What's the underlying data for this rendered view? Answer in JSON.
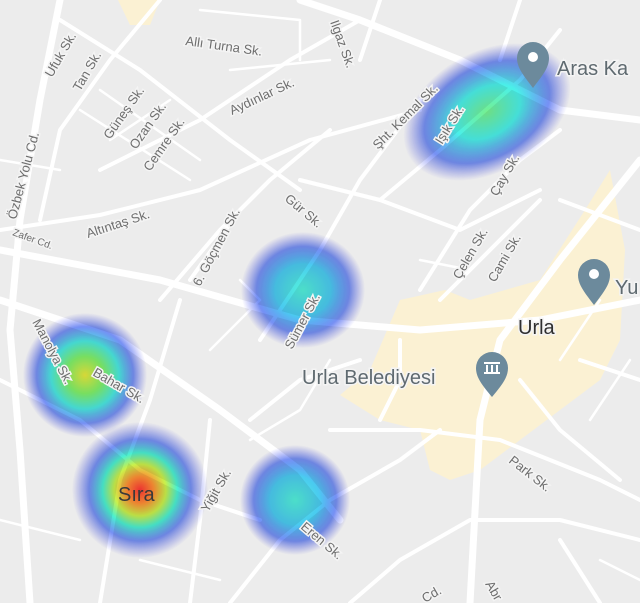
{
  "map": {
    "colors": {
      "land": "#ececec",
      "road": "#ffffff",
      "commercial_area": "#fbf1d3",
      "poi_pin": "#6c8a9c"
    },
    "heatmap_points": [
      {
        "name": "Işık Sk. cluster",
        "intensity": 0.55
      },
      {
        "name": "Sümer Sk. cluster",
        "intensity": 0.35
      },
      {
        "name": "Bahar Sk. cluster",
        "intensity": 0.7
      },
      {
        "name": "Sıra cluster",
        "intensity": 1.0
      },
      {
        "name": "Eren Sk. cluster",
        "intensity": 0.4
      }
    ],
    "streets": [
      "Allı Turna Sk.",
      "Ufuk Sk.",
      "Tan Sk.",
      "Güneş Sk.",
      "Ozan Sk.",
      "Cemre Sk.",
      "Aydınlar Sk.",
      "Ilgaz Sk.",
      "Özbek Yolu Cd.",
      "Altıntaş Sk.",
      "Zafer Cd.",
      "6. Göçmen Sk.",
      "Gür Sk.",
      "Sümer Sk.",
      "Şht. Kemal Sk.",
      "Işık Sk.",
      "Çay Sk.",
      "Çelen Sk.",
      "Cami Sk.",
      "Manolya Sk.",
      "Bahar Sk.",
      "Yiğit Sk.",
      "Eren Sk.",
      "Park Sk.",
      "Abr",
      "Cd."
    ],
    "places": {
      "aras": "Aras Ka",
      "yu": "Yu",
      "urla": "Urla",
      "belediye": "Urla Belediyesi",
      "sira": "Sıra"
    },
    "icons": {
      "aras": "map-pin-icon",
      "yu": "map-pin-icon",
      "belediye": "city-hall-pin-icon"
    }
  }
}
